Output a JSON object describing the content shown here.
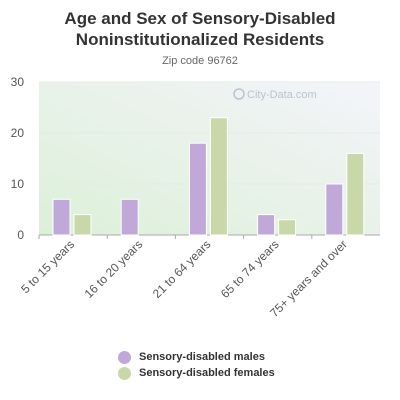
{
  "title_line1": "Age and Sex of Sensory-Disabled",
  "title_line2": "Noninstitutionalized Residents",
  "subtitle": "Zip code 96762",
  "watermark": "City-Data.com",
  "colors": {
    "males": "#c0a8d8",
    "females": "#c8d8a8"
  },
  "chart_data": {
    "type": "bar",
    "title": "Age and Sex of Sensory-Disabled Noninstitutionalized Residents",
    "subtitle": "Zip code 96762",
    "categories": [
      "5 to 15 years",
      "16 to 20 years",
      "21 to 64 years",
      "65 to 74 years",
      "75+ years and over"
    ],
    "series": [
      {
        "name": "Sensory-disabled males",
        "values": [
          7,
          7,
          18,
          4,
          10
        ]
      },
      {
        "name": "Sensory-disabled females",
        "values": [
          4,
          0,
          23,
          3,
          16
        ]
      }
    ],
    "ylim": [
      0,
      30
    ],
    "yticks": [
      0,
      10,
      20,
      30
    ],
    "grid": true,
    "legend": "bottom"
  }
}
